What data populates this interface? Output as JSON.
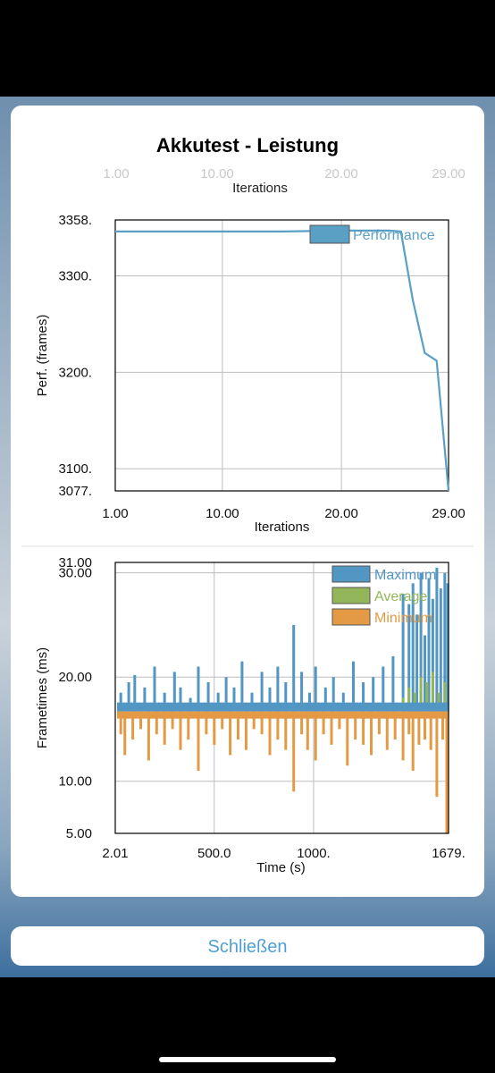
{
  "dialog": {
    "title": "Akkutest - Leistung",
    "close_label": "Schließen",
    "stray_axis_label": "Iterations"
  },
  "colors": {
    "performance": "#5a9fc4",
    "maximum": "#5296c3",
    "average": "#93b65a",
    "minimum": "#e49a45"
  },
  "chart_data": [
    {
      "type": "line",
      "xlabel": "Iterations",
      "ylabel": "Perf. (frames)",
      "xlim": [
        1,
        29
      ],
      "ylim": [
        3077,
        3358
      ],
      "xticks": [
        "1.00",
        "10.00",
        "20.00",
        "29.00"
      ],
      "yticks": [
        "3358.",
        "3300.",
        "3200.",
        "3100.",
        "3077."
      ],
      "grid": true,
      "legend": "top-right",
      "series": [
        {
          "name": "Performance",
          "x": [
            1,
            5,
            10,
            15,
            20,
            23,
            24,
            25,
            26,
            27,
            28,
            29
          ],
          "y": [
            3346,
            3346,
            3346,
            3346,
            3347,
            3347,
            3347,
            3346,
            3275,
            3220,
            3212,
            3077
          ]
        }
      ]
    },
    {
      "type": "bar",
      "xlabel": "Time (s)",
      "ylabel": "Frametimes (ms)",
      "xlim": [
        2.01,
        1679
      ],
      "ylim": [
        5,
        31
      ],
      "xticks": [
        "2.01",
        "500.0",
        "1000.",
        "1679."
      ],
      "yticks": [
        "31.00",
        "30.00",
        "20.00",
        "10.00",
        "5.00"
      ],
      "grid": true,
      "legend": "top-right",
      "baseline": 16.7,
      "series": [
        {
          "name": "Maximum",
          "x": [
            30,
            70,
            100,
            150,
            200,
            250,
            300,
            330,
            380,
            420,
            470,
            520,
            560,
            600,
            640,
            690,
            740,
            780,
            820,
            860,
            900,
            940,
            980,
            1010,
            1060,
            1100,
            1150,
            1200,
            1250,
            1300,
            1350,
            1400,
            1450,
            1480,
            1500,
            1520,
            1540,
            1560,
            1580,
            1600,
            1620,
            1640,
            1660,
            1675
          ],
          "values": [
            18.5,
            19.5,
            20.2,
            19.0,
            21.0,
            18.5,
            20.5,
            19.0,
            18.0,
            21.0,
            19.5,
            18.5,
            20.0,
            19.0,
            21.5,
            18.5,
            20.5,
            19.0,
            21.0,
            19.5,
            25.0,
            20.5,
            18.5,
            21.0,
            19.0,
            20.0,
            18.5,
            21.5,
            19.5,
            20.0,
            21.0,
            22.0,
            28.0,
            27.0,
            29.0,
            26.0,
            30.0,
            24.0,
            29.5,
            27.5,
            30.5,
            28.5,
            30.0,
            29.0
          ]
        },
        {
          "name": "Average",
          "x": [
            1450,
            1480,
            1510,
            1540,
            1570,
            1600,
            1630,
            1660
          ],
          "values": [
            18.0,
            19.0,
            18.5,
            20.0,
            19.5,
            20.5,
            18.5,
            19.5
          ]
        },
        {
          "name": "Minimum",
          "x": [
            30,
            50,
            90,
            130,
            170,
            210,
            250,
            290,
            330,
            370,
            420,
            460,
            500,
            540,
            580,
            620,
            660,
            700,
            740,
            780,
            820,
            860,
            900,
            940,
            970,
            1010,
            1050,
            1090,
            1130,
            1170,
            1210,
            1250,
            1290,
            1330,
            1370,
            1410,
            1450,
            1480,
            1500,
            1530,
            1560,
            1590,
            1620,
            1650,
            1670
          ],
          "values": [
            14.5,
            12.5,
            14.0,
            15.0,
            12.0,
            14.5,
            13.5,
            15.0,
            13.0,
            14.0,
            11.0,
            14.5,
            13.5,
            15.0,
            12.5,
            14.0,
            13.0,
            15.0,
            14.5,
            12.5,
            14.0,
            13.0,
            9.0,
            14.5,
            13.0,
            12.0,
            14.5,
            13.5,
            15.0,
            11.5,
            14.0,
            13.5,
            12.5,
            14.5,
            13.0,
            14.0,
            12.0,
            14.5,
            11.0,
            13.5,
            14.0,
            13.0,
            8.5,
            14.0,
            5.0
          ]
        }
      ]
    }
  ]
}
